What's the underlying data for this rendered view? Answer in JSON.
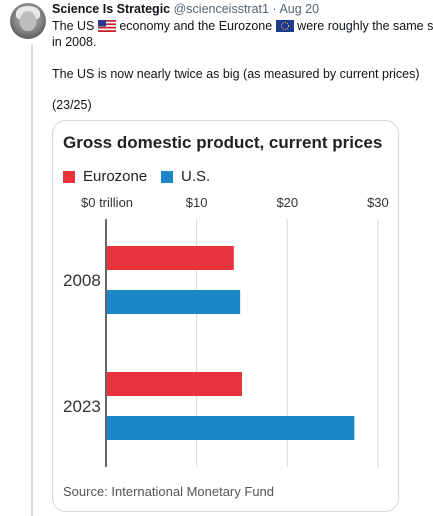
{
  "tweet": {
    "author_name": "Science Is Strategic",
    "handle": "@scienceisstrat1",
    "separator": "·",
    "date": "Aug 20",
    "line1_part1": "The US ",
    "line1_part2": " economy and the Eurozone ",
    "line1_part3": " were roughly the same size",
    "line2": "in 2008.",
    "line3": "The US is now nearly twice as big (as measured by current prices)",
    "line4": "(23/25)"
  },
  "colors": {
    "eurozone": "#e8323c",
    "us": "#1b87c9",
    "border": "#cfd9de",
    "grid": "#d9d9d9"
  },
  "icons": [
    "us-flag-icon",
    "eu-flag-icon"
  ],
  "chart_data": {
    "type": "bar",
    "orientation": "horizontal",
    "title": "Gross domestic product, current prices",
    "categories": [
      "2008",
      "2023"
    ],
    "series": [
      {
        "name": "Eurozone",
        "values": [
          14.1,
          15.0
        ]
      },
      {
        "name": "U.S.",
        "values": [
          14.8,
          27.4
        ]
      }
    ],
    "xticks": [
      "$0 trillion",
      "$10",
      "$20",
      "$30"
    ],
    "xtick_values": [
      0,
      10,
      20,
      30
    ],
    "xlim": [
      0,
      31
    ],
    "grid": true,
    "legend_position": "top-left",
    "source": "Source: International Monetary Fund"
  }
}
